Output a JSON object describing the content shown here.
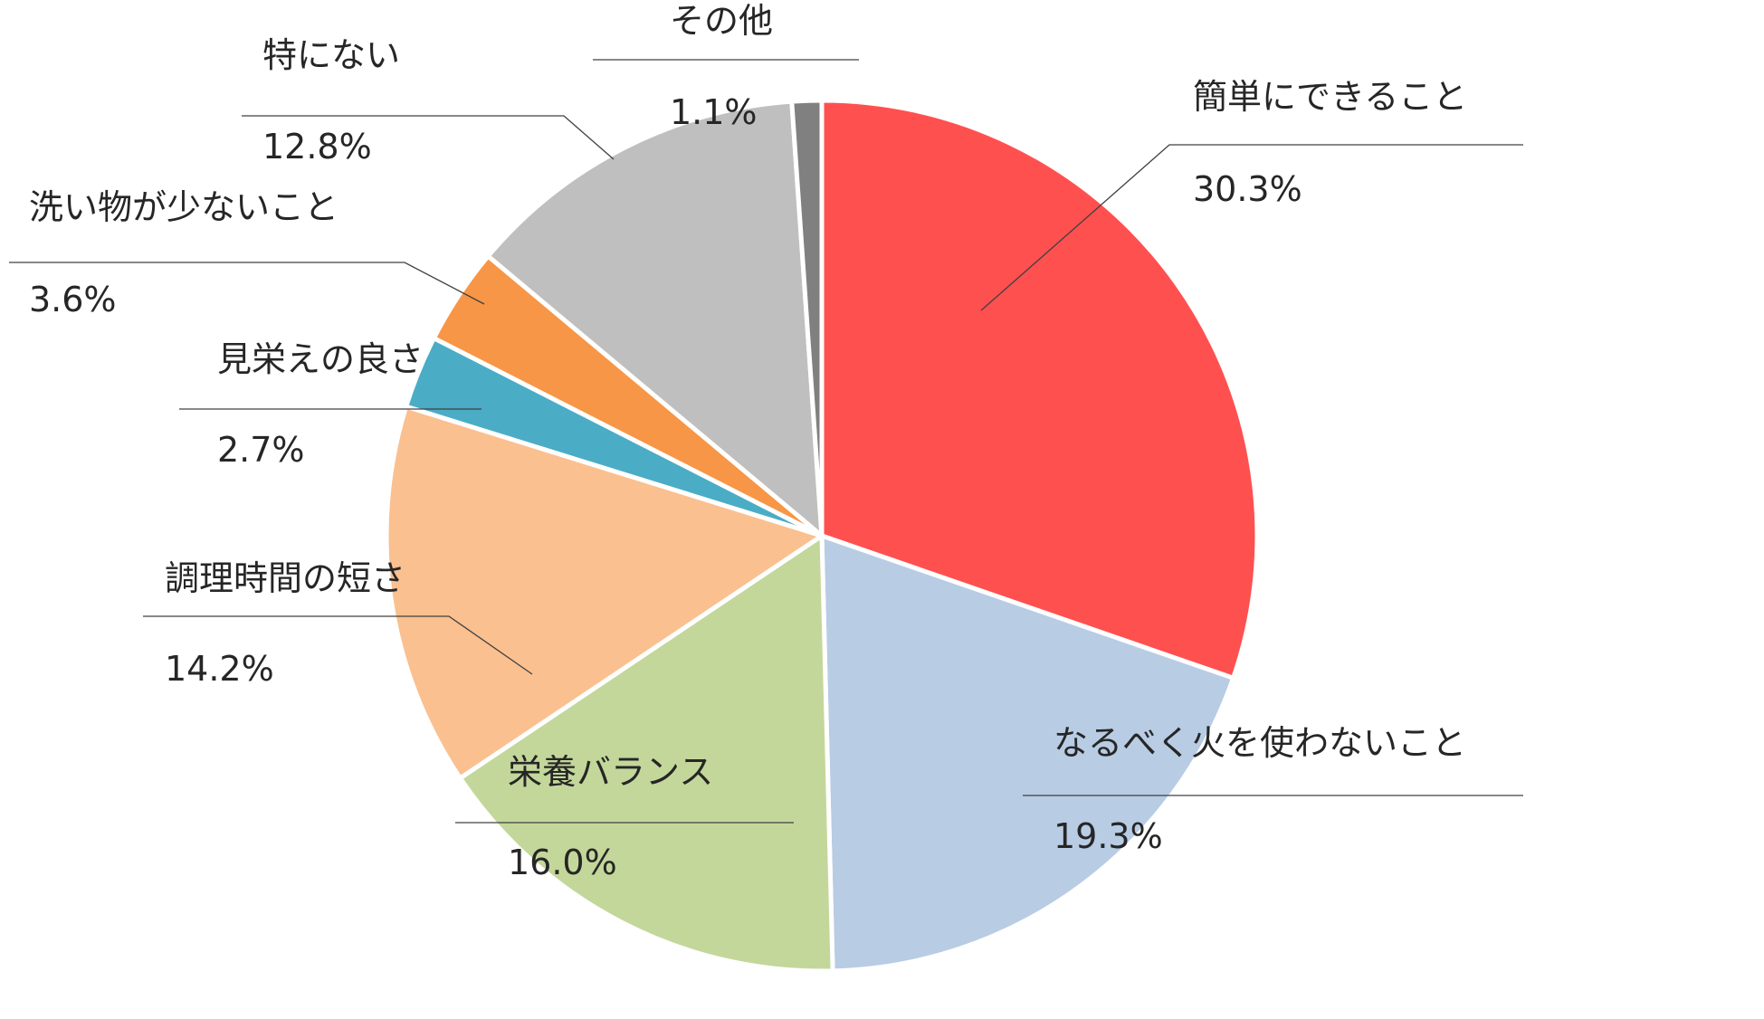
{
  "chart_data": {
    "type": "pie",
    "title": "",
    "start_angle_deg": 0,
    "direction": "clockwise",
    "slices": [
      {
        "label": "簡単にできること",
        "value": 30.3,
        "value_label": "30.3%",
        "color": "#FF5050"
      },
      {
        "label": "なるべく火を使わないこと",
        "value": 19.3,
        "value_label": "19.3%",
        "color": "#B8CCE4"
      },
      {
        "label": "栄養バランス",
        "value": 16.0,
        "value_label": "16.0%",
        "color": "#C4D79B"
      },
      {
        "label": "調理時間の短さ",
        "value": 14.2,
        "value_label": "14.2%",
        "color": "#FAC090"
      },
      {
        "label": "見栄えの良さ",
        "value": 2.7,
        "value_label": "2.7%",
        "color": "#4BACC6"
      },
      {
        "label": "洗い物が少ないこと",
        "value": 3.6,
        "value_label": "3.6%",
        "color": "#F79646"
      },
      {
        "label": "特にない",
        "value": 12.8,
        "value_label": "12.8%",
        "color": "#BFBFBF"
      },
      {
        "label": "その他",
        "value": 1.1,
        "value_label": "1.1%",
        "color": "#808080"
      }
    ]
  }
}
